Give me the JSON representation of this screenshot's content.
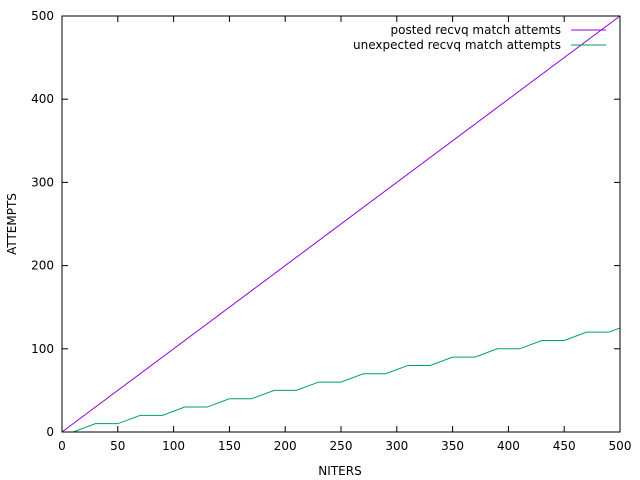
{
  "chart_data": {
    "type": "line",
    "xlabel": "NITERS",
    "ylabel": "ATTEMPTS",
    "xlim": [
      0,
      500
    ],
    "ylim": [
      0,
      500
    ],
    "xticks": [
      0,
      50,
      100,
      150,
      200,
      250,
      300,
      350,
      400,
      450,
      500
    ],
    "yticks": [
      0,
      100,
      200,
      300,
      400,
      500
    ],
    "grid": false,
    "legend_position": "top-right",
    "series": [
      {
        "name": "posted recvq match attemts",
        "color": "#9400d3",
        "x": [
          0,
          500
        ],
        "y": [
          0,
          500
        ]
      },
      {
        "name": "unexpected recvq match attempts",
        "color": "#009e73",
        "x": [
          0,
          10,
          30,
          50,
          70,
          90,
          110,
          130,
          150,
          170,
          190,
          210,
          230,
          250,
          270,
          290,
          310,
          330,
          350,
          370,
          390,
          410,
          430,
          450,
          470,
          490,
          500
        ],
        "y": [
          0,
          0,
          10,
          10,
          20,
          20,
          30,
          30,
          40,
          40,
          50,
          50,
          60,
          60,
          70,
          70,
          80,
          80,
          90,
          90,
          100,
          100,
          110,
          110,
          120,
          120,
          125
        ]
      }
    ]
  }
}
